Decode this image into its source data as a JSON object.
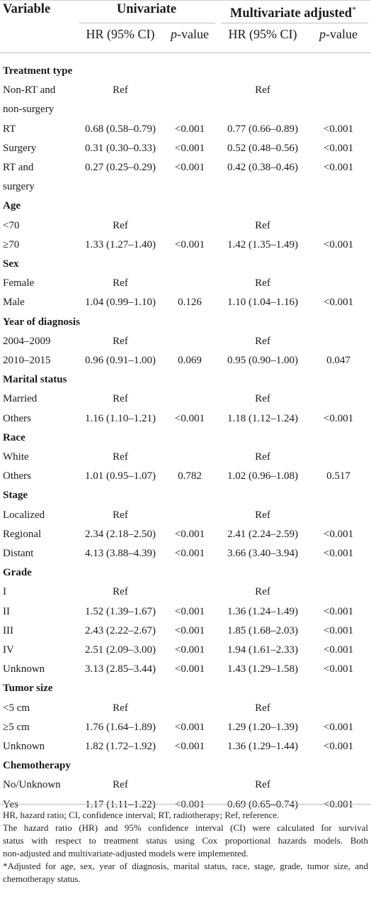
{
  "header": {
    "variable": "Variable",
    "univariate": "Univariate",
    "multivariate": "Multivariate adjusted",
    "multivariate_mark": "*",
    "hr_ci": "HR (95% CI)",
    "p_italic": "p",
    "p_suffix": "-value"
  },
  "sections": [
    {
      "title": "Treatment type",
      "rows": [
        {
          "label": "Non-RT and",
          "label2": "non-surgery",
          "uni_hr": "Ref",
          "uni_p": "",
          "multi_hr": "Ref",
          "multi_p": ""
        },
        {
          "label": "RT",
          "uni_hr": "0.68 (0.58–0.79)",
          "uni_p": "<0.001",
          "multi_hr": "0.77 (0.66–0.89)",
          "multi_p": "<0.001"
        },
        {
          "label": "Surgery",
          "uni_hr": "0.31 (0.30–0.33)",
          "uni_p": "<0.001",
          "multi_hr": "0.52 (0.48–0.56)",
          "multi_p": "<0.001"
        },
        {
          "label": "RT and",
          "label2": "surgery",
          "uni_hr": "0.27 (0.25–0.29)",
          "uni_p": "<0.001",
          "multi_hr": "0.42 (0.38–0.46)",
          "multi_p": "<0.001"
        }
      ]
    },
    {
      "title": "Age",
      "rows": [
        {
          "label": "<70",
          "uni_hr": "Ref",
          "uni_p": "",
          "multi_hr": "Ref",
          "multi_p": ""
        },
        {
          "label": "≥70",
          "uni_hr": "1.33 (1.27–1.40)",
          "uni_p": "<0.001",
          "multi_hr": "1.42 (1.35–1.49)",
          "multi_p": "<0.001"
        }
      ]
    },
    {
      "title": "Sex",
      "rows": [
        {
          "label": "Female",
          "uni_hr": "Ref",
          "uni_p": "",
          "multi_hr": "Ref",
          "multi_p": ""
        },
        {
          "label": "Male",
          "uni_hr": "1.04 (0.99–1.10)",
          "uni_p": "0.126",
          "multi_hr": "1.10 (1.04–1.16)",
          "multi_p": "<0.001"
        }
      ]
    },
    {
      "title": "Year of diagnosis",
      "rows": [
        {
          "label": "2004–2009",
          "uni_hr": "Ref",
          "uni_p": "",
          "multi_hr": "Ref",
          "multi_p": ""
        },
        {
          "label": "2010–2015",
          "uni_hr": "0.96 (0.91–1.00)",
          "uni_p": "0.069",
          "multi_hr": "0.95 (0.90–1.00)",
          "multi_p": "0.047"
        }
      ]
    },
    {
      "title": "Marital status",
      "rows": [
        {
          "label": "Married",
          "uni_hr": "Ref",
          "uni_p": "",
          "multi_hr": "Ref",
          "multi_p": ""
        },
        {
          "label": "Others",
          "uni_hr": "1.16 (1.10–1.21)",
          "uni_p": "<0.001",
          "multi_hr": "1.18 (1.12–1.24)",
          "multi_p": "<0.001"
        }
      ]
    },
    {
      "title": "Race",
      "rows": [
        {
          "label": "White",
          "uni_hr": "Ref",
          "uni_p": "",
          "multi_hr": "Ref",
          "multi_p": ""
        },
        {
          "label": "Others",
          "uni_hr": "1.01 (0.95–1.07)",
          "uni_p": "0.782",
          "multi_hr": "1.02 (0.96–1.08)",
          "multi_p": "0.517"
        }
      ]
    },
    {
      "title": "Stage",
      "rows": [
        {
          "label": "Localized",
          "uni_hr": "Ref",
          "uni_p": "",
          "multi_hr": "Ref",
          "multi_p": ""
        },
        {
          "label": "Regional",
          "uni_hr": "2.34 (2.18–2.50)",
          "uni_p": "<0.001",
          "multi_hr": "2.41 (2.24–2.59)",
          "multi_p": "<0.001"
        },
        {
          "label": "Distant",
          "uni_hr": "4.13 (3.88–4.39)",
          "uni_p": "<0.001",
          "multi_hr": "3.66 (3.40–3.94)",
          "multi_p": "<0.001"
        }
      ]
    },
    {
      "title": "Grade",
      "rows": [
        {
          "label": "I",
          "uni_hr": "Ref",
          "uni_p": "",
          "multi_hr": "Ref",
          "multi_p": ""
        },
        {
          "label": "II",
          "uni_hr": "1.52 (1.39–1.67)",
          "uni_p": "<0.001",
          "multi_hr": "1.36 (1.24–1.49)",
          "multi_p": "<0.001"
        },
        {
          "label": "III",
          "uni_hr": "2.43 (2.22–2.67)",
          "uni_p": "<0.001",
          "multi_hr": "1.85 (1.68–2.03)",
          "multi_p": "<0.001"
        },
        {
          "label": "IV",
          "uni_hr": "2.51 (2.09–3.00)",
          "uni_p": "<0.001",
          "multi_hr": "1.94 (1.61–2.33)",
          "multi_p": "<0.001"
        },
        {
          "label": "Unknown",
          "uni_hr": "3.13 (2.85–3.44)",
          "uni_p": "<0.001",
          "multi_hr": "1.43 (1.29–1.58)",
          "multi_p": "<0.001"
        }
      ]
    },
    {
      "title": "Tumor size",
      "rows": [
        {
          "label": "<5 cm",
          "uni_hr": "Ref",
          "uni_p": "",
          "multi_hr": "Ref",
          "multi_p": ""
        },
        {
          "label": "≥5 cm",
          "uni_hr": "1.76 (1.64–1.89)",
          "uni_p": "<0.001",
          "multi_hr": "1.29 (1.20–1.39)",
          "multi_p": "<0.001"
        },
        {
          "label": "Unknown",
          "uni_hr": "1.82 (1.72–1.92)",
          "uni_p": "<0.001",
          "multi_hr": "1.36 (1.29–1.44)",
          "multi_p": "<0.001"
        }
      ]
    },
    {
      "title": "Chemotherapy",
      "rows": [
        {
          "label": "No/Unknown",
          "uni_hr": "Ref",
          "uni_p": "",
          "multi_hr": "Ref",
          "multi_p": ""
        },
        {
          "label": "Yes",
          "uni_hr": "1.17 (1.11–1.22)",
          "uni_p": "<0.001",
          "multi_hr": "0.69 (0.65–0.74)",
          "multi_p": "<0.001"
        }
      ]
    }
  ],
  "footnotes": {
    "abbrev": "HR, hazard ratio; CI, confidence interval; RT, radiotherapy; Ref, reference.",
    "method_line1": "The hazard ratio (HR) and 95% confidence interval (CI) were calculated for survival",
    "method_line2": "status with respect to treatment status using Cox proportional hazards models. Both",
    "method_line3": "non-adjusted and multivariate-adjusted models were implemented.",
    "adjust_line1": "*Adjusted for age, sex, year of diagnosis, marital status, race, stage, grade, tumor size, and",
    "adjust_line2": "chemotherapy status."
  }
}
